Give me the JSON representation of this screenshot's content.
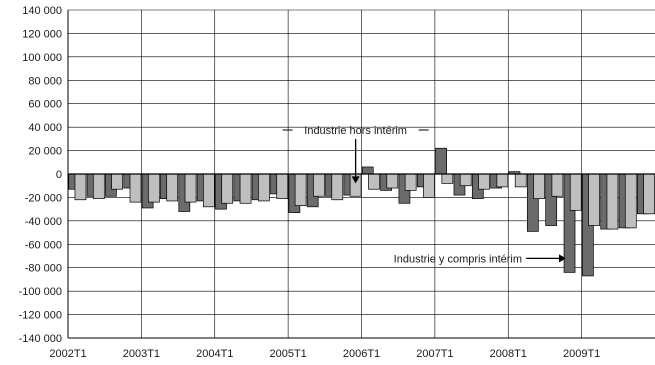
{
  "chart_data": {
    "type": "bar",
    "title": "",
    "xlabel": "",
    "ylabel": "",
    "ylim": [
      -140000,
      140000
    ],
    "y_ticks": [
      "140 000",
      "120 000",
      "100 000",
      "80 000",
      "60 000",
      "40 000",
      "20 000",
      "0",
      "-20 000",
      "-40 000",
      "-60 000",
      "-80 000",
      "-100 000",
      "-120 000",
      "-140 000"
    ],
    "y_tick_values": [
      140000,
      120000,
      100000,
      80000,
      60000,
      40000,
      20000,
      0,
      -20000,
      -40000,
      -60000,
      -80000,
      -100000,
      -120000,
      -140000
    ],
    "x_tick_labels": [
      "2002T1",
      "2003T1",
      "2004T1",
      "2005T1",
      "2006T1",
      "2007T1",
      "2008T1",
      "2009T1"
    ],
    "grid": true,
    "categories": [
      "2002T1",
      "2002T2",
      "2002T3",
      "2002T4",
      "2003T1",
      "2003T2",
      "2003T3",
      "2003T4",
      "2004T1",
      "2004T2",
      "2004T3",
      "2004T4",
      "2005T1",
      "2005T2",
      "2005T3",
      "2005T4",
      "2006T1",
      "2006T2",
      "2006T3",
      "2006T4",
      "2007T1",
      "2007T2",
      "2007T3",
      "2007T4",
      "2008T1",
      "2008T2",
      "2008T3",
      "2008T4",
      "2009T1",
      "2009T2",
      "2009T3",
      "2009T4"
    ],
    "series": [
      {
        "key": "dark",
        "color": "#6b6b6b",
        "values": [
          -13000,
          -19000,
          -19000,
          -12000,
          -29000,
          -21000,
          -32000,
          -23000,
          -30000,
          -23000,
          -22000,
          -17000,
          -33000,
          -28000,
          -19000,
          -18000,
          6000,
          -14000,
          -25000,
          -11000,
          22000,
          -18000,
          -21000,
          -12000,
          2000,
          -49000,
          -44000,
          -84000,
          -87000,
          -47000,
          -46000,
          -34000
        ]
      },
      {
        "key": "light",
        "color": "#bfbfbf",
        "values": [
          -22000,
          -21000,
          -13000,
          -24000,
          -24000,
          -23000,
          -24000,
          -28000,
          -25000,
          -25000,
          -23000,
          -21000,
          -27000,
          -19000,
          -22000,
          -19000,
          -13000,
          -12000,
          -14000,
          -20000,
          -8000,
          -10000,
          -13000,
          -11000,
          -11000,
          -21000,
          -19000,
          -31000,
          -44000,
          -47000,
          -46000,
          -34000
        ]
      }
    ],
    "annotations": [
      {
        "text": "Industrie hors intérim",
        "target": "light",
        "target_index": 15,
        "value": -8000
      },
      {
        "text": "Industrie y compris intérim",
        "target": "dark",
        "target_index": 26,
        "value": -72000
      }
    ]
  }
}
